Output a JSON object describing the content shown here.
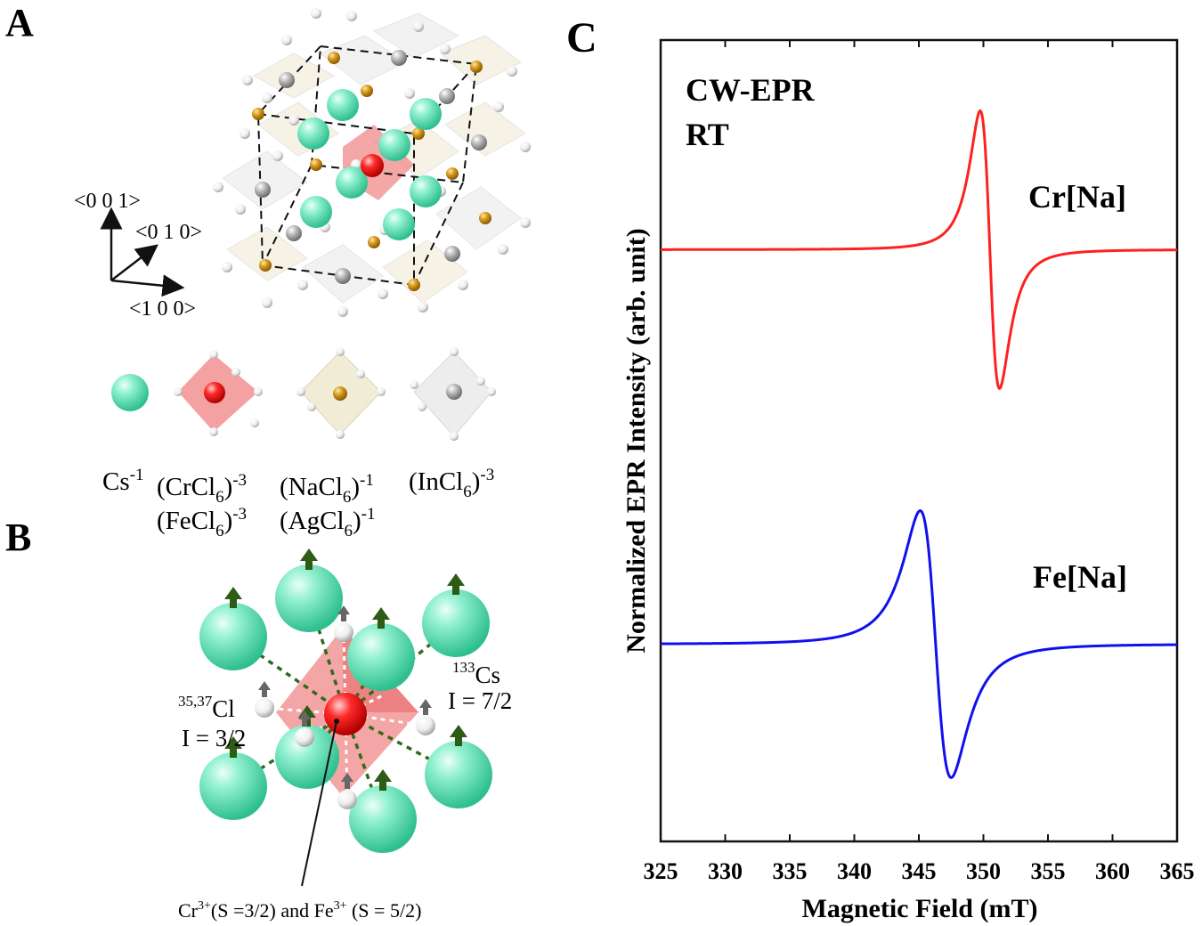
{
  "panel_a": {
    "label": "A",
    "axes": {
      "z": "<0 0 1>",
      "y": "<0 1 0>",
      "x": "<1 0 0>"
    },
    "legend": {
      "cs": {
        "base": "Cs",
        "sup": "-1"
      },
      "cr": {
        "base": "(CrCl",
        "sub": "6",
        "close": ")",
        "sup": "-3"
      },
      "fe": {
        "base": "(FeCl",
        "sub": "6",
        "close": ")",
        "sup": "-3"
      },
      "na": {
        "base": "(NaCl",
        "sub": "6",
        "close": ")",
        "sup": "-1"
      },
      "ag": {
        "base": "(AgCl",
        "sub": "6",
        "close": ")",
        "sup": "-1"
      },
      "in": {
        "base": "(InCl",
        "sub": "6",
        "close": ")",
        "sup": "-3"
      }
    }
  },
  "panel_b": {
    "label": "B",
    "cl": {
      "sup": "35,37",
      "base": "Cl",
      "spin": "I = 3/2"
    },
    "cs": {
      "sup": "133",
      "base": "Cs",
      "spin": "I = 7/2"
    },
    "center": {
      "a": "Cr",
      "a_sup": "3+",
      "a_rest": "(S =3/2) and Fe",
      "b_sup": "3+",
      "b_rest": " (S = 5/2)"
    }
  },
  "panel_c": {
    "label": "C",
    "annotation_line1": "CW-EPR",
    "annotation_line2": "RT",
    "colors": {
      "cr": "#ff2020",
      "fe": "#1010ee"
    }
  },
  "chart_data": {
    "type": "line",
    "title": "",
    "xlabel": "Magnetic Field (mT)",
    "ylabel": "Normalized EPR Intensity (arb. unit)",
    "xlim": [
      325,
      365
    ],
    "xticks": [
      325,
      330,
      335,
      340,
      345,
      350,
      355,
      360,
      365
    ],
    "yticks": [],
    "series": [
      {
        "name": "Cr[Na]",
        "color": "#ff2020",
        "baseline": 0.64,
        "center": 350.5,
        "halfwidth": 0.75,
        "amplitude": 0.26
      },
      {
        "name": "Fe[Na]",
        "color": "#1010ee",
        "baseline": 0.0,
        "center": 346.3,
        "halfwidth": 1.2,
        "amplitude": 0.25
      }
    ],
    "ylim": [
      -0.32,
      0.98
    ]
  }
}
